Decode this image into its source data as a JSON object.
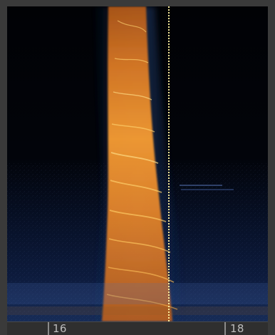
{
  "window": {
    "title": ""
  },
  "spectrogram": {
    "colormap": [
      "#050509",
      "#0d1530",
      "#203d6b",
      "#7a4a25",
      "#c9711f",
      "#f09a34",
      "#ffd06a"
    ],
    "background_color": "#020306",
    "playhead_color": "#fff3a0"
  },
  "time_axis": {
    "labels": [
      {
        "text": "16"
      },
      {
        "text": "18"
      }
    ]
  },
  "icons": {
    "playhead": "playhead-marker-icon"
  }
}
